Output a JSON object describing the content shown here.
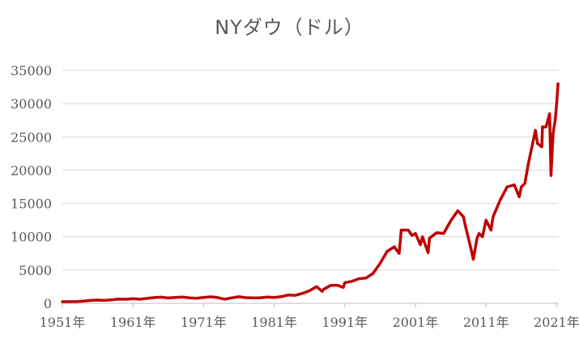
{
  "chart_data": {
    "type": "line",
    "title": "NYダウ（ドル）",
    "xlabel": "",
    "ylabel": "",
    "xlim": [
      1951,
      2021.3
    ],
    "ylim": [
      0,
      35000
    ],
    "y_ticks": [
      "0",
      "5000",
      "10000",
      "15000",
      "20000",
      "25000",
      "30000",
      "35000"
    ],
    "y_tick_values": [
      0,
      5000,
      10000,
      15000,
      20000,
      25000,
      30000,
      35000
    ],
    "x_ticks": [
      "1951年",
      "1961年",
      "1971年",
      "1981年",
      "1991年",
      "2001年",
      "2011年",
      "2021年"
    ],
    "x_tick_values": [
      1951,
      1961,
      1971,
      1981,
      1991,
      2001,
      2011,
      2021
    ],
    "grid": "horizontal",
    "legend": "none",
    "series": [
      {
        "color": "#c00000",
        "x": [
          1951,
          1953,
          1954,
          1955,
          1956,
          1957,
          1958,
          1959,
          1960,
          1961,
          1962,
          1963,
          1964,
          1965,
          1966,
          1967,
          1968,
          1969,
          1970,
          1971,
          1972,
          1973,
          1974,
          1975,
          1976,
          1977,
          1978,
          1979,
          1980,
          1981,
          1982,
          1983,
          1984,
          1985,
          1986,
          1987,
          1987.8,
          1988,
          1989,
          1990,
          1990.8,
          1991,
          1992,
          1993,
          1994,
          1995,
          1996,
          1997,
          1998,
          1998.7,
          1999,
          2000,
          2000.5,
          2001,
          2001.7,
          2002,
          2002.8,
          2003,
          2004,
          2005,
          2006,
          2007,
          2007.8,
          2008,
          2008.8,
          2009.2,
          2009.7,
          2010,
          2010.5,
          2011,
          2011.7,
          2012,
          2013,
          2014,
          2015,
          2015.7,
          2016,
          2016.5,
          2017,
          2018,
          2018.3,
          2018.9,
          2019,
          2019.5,
          2020,
          2020.2,
          2020.5,
          2020.8,
          2021,
          2021.2
        ],
        "y": [
          240,
          280,
          330,
          440,
          490,
          440,
          530,
          630,
          610,
          700,
          620,
          740,
          860,
          920,
          800,
          880,
          930,
          820,
          760,
          880,
          980,
          860,
          620,
          830,
          990,
          850,
          810,
          840,
          950,
          880,
          1000,
          1250,
          1200,
          1500,
          1900,
          2500,
          1800,
          2100,
          2700,
          2700,
          2400,
          3100,
          3300,
          3700,
          3800,
          4500,
          6000,
          7800,
          8500,
          7500,
          11000,
          11000,
          10200,
          10500,
          8800,
          10000,
          7600,
          9800,
          10600,
          10500,
          12400,
          13900,
          13000,
          12000,
          8500,
          6600,
          9700,
          10500,
          10000,
          12500,
          11000,
          13000,
          15500,
          17500,
          17800,
          16000,
          17500,
          18000,
          21000,
          26000,
          24000,
          23500,
          26500,
          26500,
          28500,
          19200,
          25500,
          27500,
          30000,
          33000
        ]
      }
    ]
  }
}
